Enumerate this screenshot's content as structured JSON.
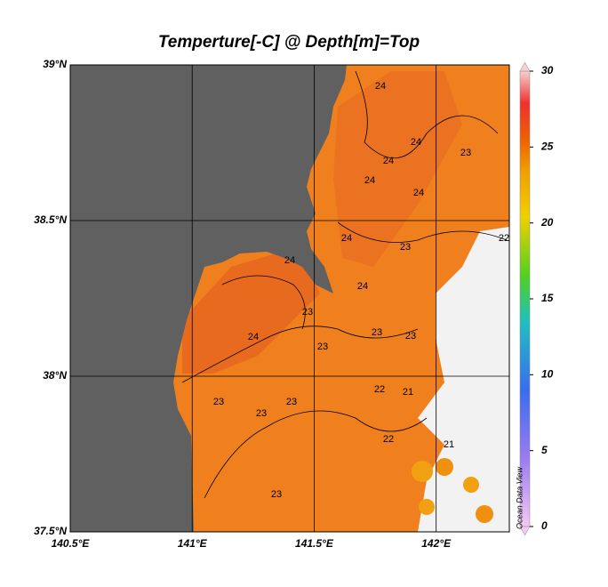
{
  "title": "Temperture[-C] @ Depth[m]=Top",
  "map": {
    "xlim": [
      140.5,
      142.3
    ],
    "ylim": [
      37.5,
      39
    ],
    "xticks": [
      {
        "value": 140.5,
        "label": "140.5°E"
      },
      {
        "value": 141,
        "label": "141°E"
      },
      {
        "value": 141.5,
        "label": "141.5°E"
      },
      {
        "value": 142,
        "label": "142°E"
      }
    ],
    "yticks": [
      {
        "value": 37.5,
        "label": "37.5°N"
      },
      {
        "value": 38,
        "label": "38°N"
      },
      {
        "value": 38.5,
        "label": "38.5°N"
      },
      {
        "value": 39,
        "label": "39°N"
      }
    ],
    "grid": true,
    "contour_labels": [
      24,
      24,
      24,
      24,
      24,
      23,
      24,
      22,
      23,
      24,
      24,
      23,
      24,
      23,
      23,
      23,
      22,
      21,
      23,
      23,
      23,
      22,
      21,
      23
    ]
  },
  "colorbar": {
    "clim": [
      0,
      30
    ],
    "ticks": [
      0,
      5,
      10,
      15,
      20,
      25,
      30
    ]
  },
  "watermark": "Ocean Data View"
}
